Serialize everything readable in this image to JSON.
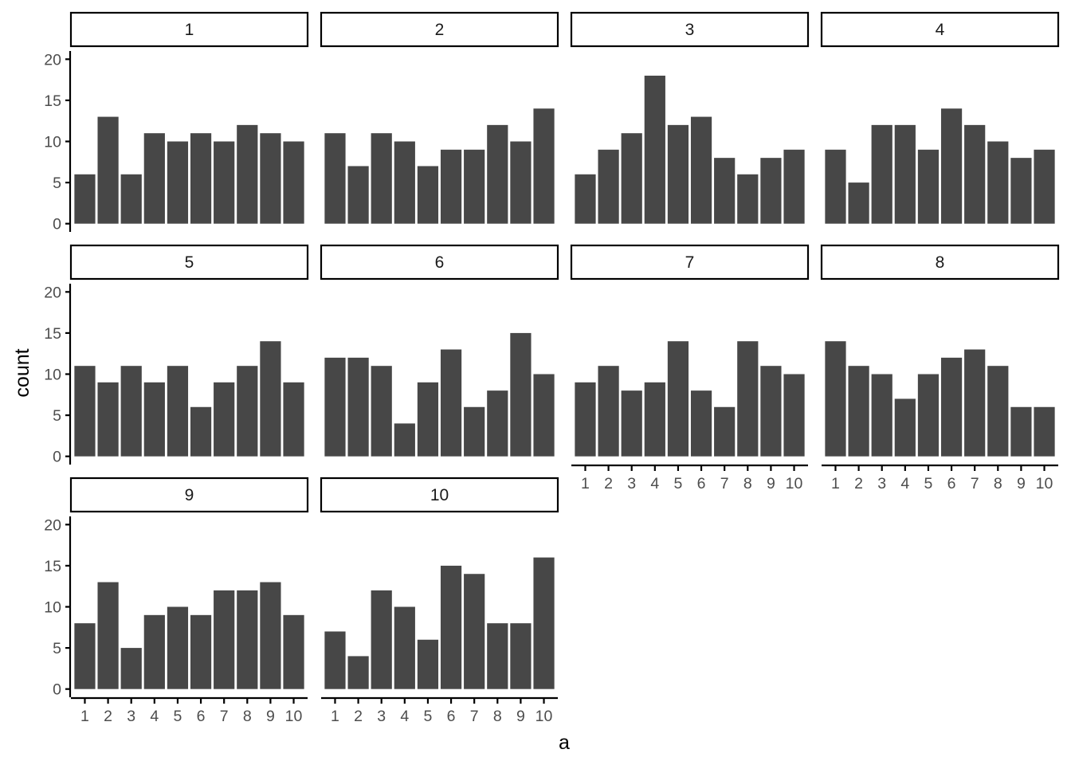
{
  "chart_data": {
    "type": "bar",
    "xlabel": "a",
    "ylabel": "count",
    "ylim": [
      0,
      20
    ],
    "y_ticks": [
      0,
      5,
      10,
      15,
      20
    ],
    "categories": [
      "1",
      "2",
      "3",
      "4",
      "5",
      "6",
      "7",
      "8",
      "9",
      "10"
    ],
    "facets": [
      {
        "label": "1",
        "values": [
          6,
          13,
          6,
          11,
          10,
          11,
          10,
          12,
          11,
          10
        ]
      },
      {
        "label": "2",
        "values": [
          11,
          7,
          11,
          10,
          7,
          9,
          9,
          12,
          10,
          14
        ]
      },
      {
        "label": "3",
        "values": [
          6,
          9,
          11,
          18,
          12,
          13,
          8,
          6,
          8,
          9
        ]
      },
      {
        "label": "4",
        "values": [
          9,
          5,
          12,
          12,
          9,
          14,
          12,
          10,
          8,
          9
        ]
      },
      {
        "label": "5",
        "values": [
          11,
          9,
          11,
          9,
          11,
          6,
          9,
          11,
          14,
          9
        ]
      },
      {
        "label": "6",
        "values": [
          12,
          12,
          11,
          4,
          9,
          13,
          6,
          8,
          15,
          10
        ]
      },
      {
        "label": "7",
        "values": [
          9,
          11,
          8,
          9,
          14,
          8,
          6,
          14,
          11,
          10
        ]
      },
      {
        "label": "8",
        "values": [
          14,
          11,
          10,
          7,
          10,
          12,
          13,
          11,
          6,
          6
        ]
      },
      {
        "label": "9",
        "values": [
          8,
          13,
          5,
          9,
          10,
          9,
          12,
          12,
          13,
          9
        ]
      },
      {
        "label": "10",
        "values": [
          7,
          4,
          12,
          10,
          6,
          15,
          14,
          8,
          8,
          16
        ]
      }
    ],
    "grid": false,
    "legend": "none",
    "colors": {
      "bar": "#474747",
      "strip_fill": "#ffffff",
      "strip_border": "#000000",
      "axis": "#000000",
      "tick_text": "#4d4d4d"
    }
  }
}
